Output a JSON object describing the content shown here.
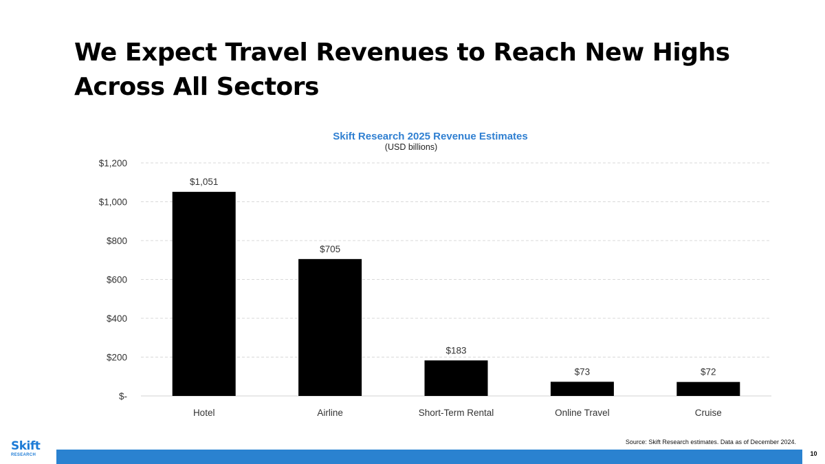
{
  "slide": {
    "title": "We Expect Travel Revenues to Reach New Highs Across All Sectors",
    "source": "Source: Skift Research estimates. Data as of December 2024.",
    "page_number": "10",
    "logo": {
      "name": "Skift",
      "sub": "RESEARCH"
    }
  },
  "colors": {
    "accent": "#2a82d0",
    "chart_title": "#2f7fd1",
    "bar": "#000000",
    "grid": "#d9d9d9"
  },
  "chart_data": {
    "type": "bar",
    "title": "Skift Research 2025 Revenue Estimates",
    "subtitle": "(USD billions)",
    "categories": [
      "Hotel",
      "Airline",
      "Short-Term Rental",
      "Online Travel",
      "Cruise"
    ],
    "values": [
      1051,
      705,
      183,
      73,
      72
    ],
    "data_labels": [
      "$1,051",
      "$705",
      "$183",
      "$73",
      "$72"
    ],
    "ylim": [
      0,
      1200
    ],
    "yticks": [
      0,
      200,
      400,
      600,
      800,
      1000,
      1200
    ],
    "ytick_labels": [
      "$-",
      "$200",
      "$400",
      "$600",
      "$800",
      "$1,000",
      "$1,200"
    ],
    "grid": true,
    "xlabel": "",
    "ylabel": ""
  }
}
